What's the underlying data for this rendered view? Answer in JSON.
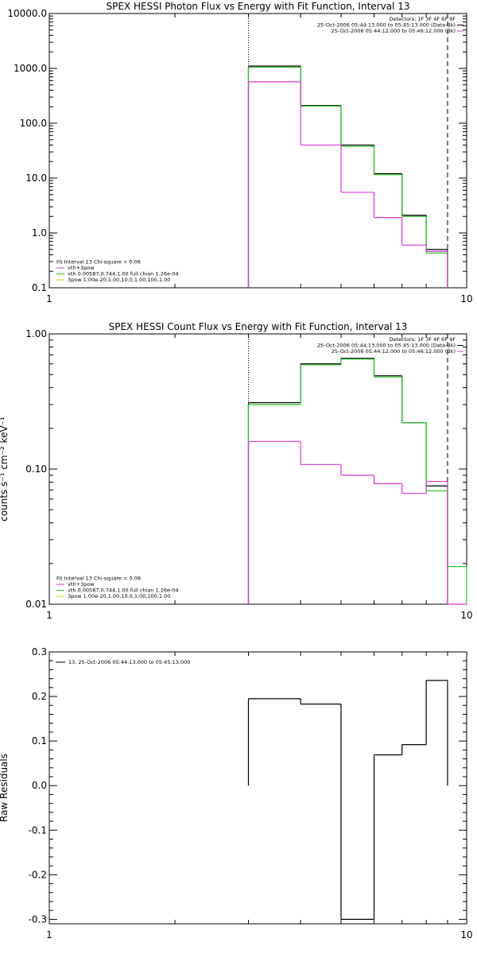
{
  "figure": {
    "background": "#ffffff",
    "colors": {
      "axis": "#000000",
      "data": "#000000",
      "total_fit": "#22cc22",
      "component_fit": "#dd33dd",
      "spec_fit": "#cccc00"
    }
  },
  "chart_data": [
    {
      "type": "line",
      "title": "SPEX HESSI Photon Flux vs Energy with Fit Function, Interval 13",
      "xlabel": "",
      "ylabel": "",
      "xscale": "log",
      "yscale": "log",
      "xlim": [
        1,
        10
      ],
      "ylim": [
        0.1,
        10000
      ],
      "xticks": [
        {
          "v": 1,
          "label": "1"
        },
        {
          "v": 10,
          "label": "10"
        }
      ],
      "yticks": [
        {
          "v": 0.1,
          "label": "0.1"
        },
        {
          "v": 1,
          "label": "1.0"
        },
        {
          "v": 10,
          "label": "10.0"
        },
        {
          "v": 100,
          "label": "100.0"
        },
        {
          "v": 1000,
          "label": "1000.0"
        },
        {
          "v": 10000,
          "label": "10000.0"
        }
      ],
      "bin_edges": [
        3.0,
        4.0,
        5.0,
        6.0,
        7.0,
        8.0,
        9.0
      ],
      "series": [
        {
          "name": "",
          "color": "#000000",
          "values": [
            1100,
            210,
            40,
            12,
            2.1,
            0.5
          ]
        },
        {
          "name": "vth+3pow",
          "color": "#22cc22",
          "values": [
            1050,
            205,
            38,
            11.5,
            2.0,
            0.43
          ]
        },
        {
          "name": "vth 0.00587,0.744,1.00 full chian 1.26e-04",
          "color": "#dd33dd",
          "values": [
            570,
            40,
            5.5,
            1.9,
            0.6,
            0.46
          ]
        }
      ],
      "vlines": [
        {
          "x": 3.0,
          "style": "dotted",
          "color": "#000000"
        },
        {
          "x": 9.0,
          "style": "dashed",
          "color": "#000000"
        }
      ],
      "legend_top": {
        "position": "top-right",
        "lines": [
          {
            "text": "Detectors: 1F 3F 4F 6F 9F",
            "color": ""
          },
          {
            "text": "25-Oct-2006 05:44:13.000 to 05:45:13.000 (Data-Bk)",
            "color": "#000000"
          },
          {
            "text": "25-Oct-2006 05:44:12.000 to 05:46:12.000 (Bk)",
            "color": "#dd33dd"
          }
        ]
      },
      "legend_bottom": {
        "position": "bottom-left",
        "lines": [
          {
            "text": "Fit Interval 13   Chi-square = 0.06",
            "color": ""
          },
          {
            "text": "vth+3pow",
            "color": "#dd33dd"
          },
          {
            "text": "vth 0.00587,0.744,1.00  full chian 1.26e-04",
            "color": "#22cc22"
          },
          {
            "text": "3pow 1.00e-20,1.00,10.0,1.00,100,1.00",
            "color": "#cccc00"
          }
        ]
      }
    },
    {
      "type": "line",
      "title": "SPEX HESSI Count Flux vs Energy with Fit Function, Interval 13",
      "xlabel": "",
      "ylabel": "counts s⁻¹ cm⁻² keV⁻¹",
      "xscale": "log",
      "yscale": "log",
      "xlim": [
        1,
        10
      ],
      "ylim": [
        0.01,
        1.0
      ],
      "xticks": [
        {
          "v": 1,
          "label": "1"
        },
        {
          "v": 10,
          "label": "10"
        }
      ],
      "yticks": [
        {
          "v": 0.01,
          "label": "0.01"
        },
        {
          "v": 0.1,
          "label": "0.10"
        },
        {
          "v": 1.0,
          "label": "1.00"
        }
      ],
      "bin_edges": [
        3.0,
        4.0,
        5.0,
        6.0,
        7.0,
        8.0,
        9.0,
        10.0
      ],
      "series": [
        {
          "name": "",
          "color": "#000000",
          "values": [
            0.31,
            0.6,
            0.66,
            0.49,
            0.22,
            0.075,
            null
          ]
        },
        {
          "name": "vth+3pow",
          "color": "#22cc22",
          "values": [
            0.3,
            0.59,
            0.65,
            0.48,
            0.22,
            0.069,
            0.019
          ]
        },
        {
          "name": "vth 0.00587,0.744,1.00 full chian 1.26e-04",
          "color": "#dd33dd",
          "values": [
            0.16,
            0.108,
            0.09,
            0.078,
            0.066,
            0.081,
            0.01
          ]
        }
      ],
      "vlines": [
        {
          "x": 3.0,
          "style": "dotted",
          "color": "#000000"
        },
        {
          "x": 9.0,
          "style": "dashed",
          "color": "#000000"
        }
      ],
      "legend_top": {
        "position": "top-right",
        "lines": [
          {
            "text": "Detectors: 1F 3F 4F 6F 9F",
            "color": ""
          },
          {
            "text": "25-Oct-2006 05:44:13.000 to 05:45:13.000 (Data-Bk)",
            "color": "#000000"
          },
          {
            "text": "25-Oct-2006 05:44:12.000 to 05:46:12.000 (Bk)",
            "color": "#dd33dd"
          }
        ]
      },
      "legend_bottom": {
        "position": "bottom-left",
        "lines": [
          {
            "text": "Fit Interval 13   Chi-square = 0.06",
            "color": ""
          },
          {
            "text": "vth+3pow",
            "color": "#dd33dd"
          },
          {
            "text": "vth 0.00587,0.744,1.00  full chian 1.26e-04",
            "color": "#22cc22"
          },
          {
            "text": "3pow 1.00e-20,1.00,10.0,1.00,100,1.00",
            "color": "#cccc00"
          }
        ]
      }
    },
    {
      "type": "line",
      "title": "",
      "xlabel": "",
      "ylabel": "Raw Residuals",
      "xscale": "log",
      "yscale": "linear",
      "xlim": [
        1,
        10
      ],
      "ylim": [
        -0.31,
        0.3
      ],
      "xticks": [
        {
          "v": 1,
          "label": "1"
        },
        {
          "v": 10,
          "label": "10"
        }
      ],
      "yticks": [
        {
          "v": -0.3,
          "label": "-0.3"
        },
        {
          "v": -0.2,
          "label": "-0.2"
        },
        {
          "v": -0.1,
          "label": "-0.1"
        },
        {
          "v": 0.0,
          "label": "0.0"
        },
        {
          "v": 0.1,
          "label": "0.1"
        },
        {
          "v": 0.2,
          "label": "0.2"
        },
        {
          "v": 0.3,
          "label": "0.3"
        }
      ],
      "bin_edges": [
        3.0,
        4.0,
        5.0,
        6.0,
        7.0,
        8.0,
        9.0
      ],
      "series": [
        {
          "name": "13. 25-Oct-2006 05:44:13.000 to 05:45:13.000",
          "color": "#000000",
          "values": [
            0.195,
            0.183,
            -0.3,
            0.069,
            0.092,
            0.236
          ]
        }
      ],
      "vlines": [],
      "legend_top": {
        "position": "top-left",
        "lines": [
          {
            "text": "13. 25-Oct-2006 05:44:13.000 to 05:45:13.000",
            "color": "#000000"
          }
        ]
      },
      "legend_bottom": {
        "position": "",
        "lines": []
      }
    }
  ]
}
